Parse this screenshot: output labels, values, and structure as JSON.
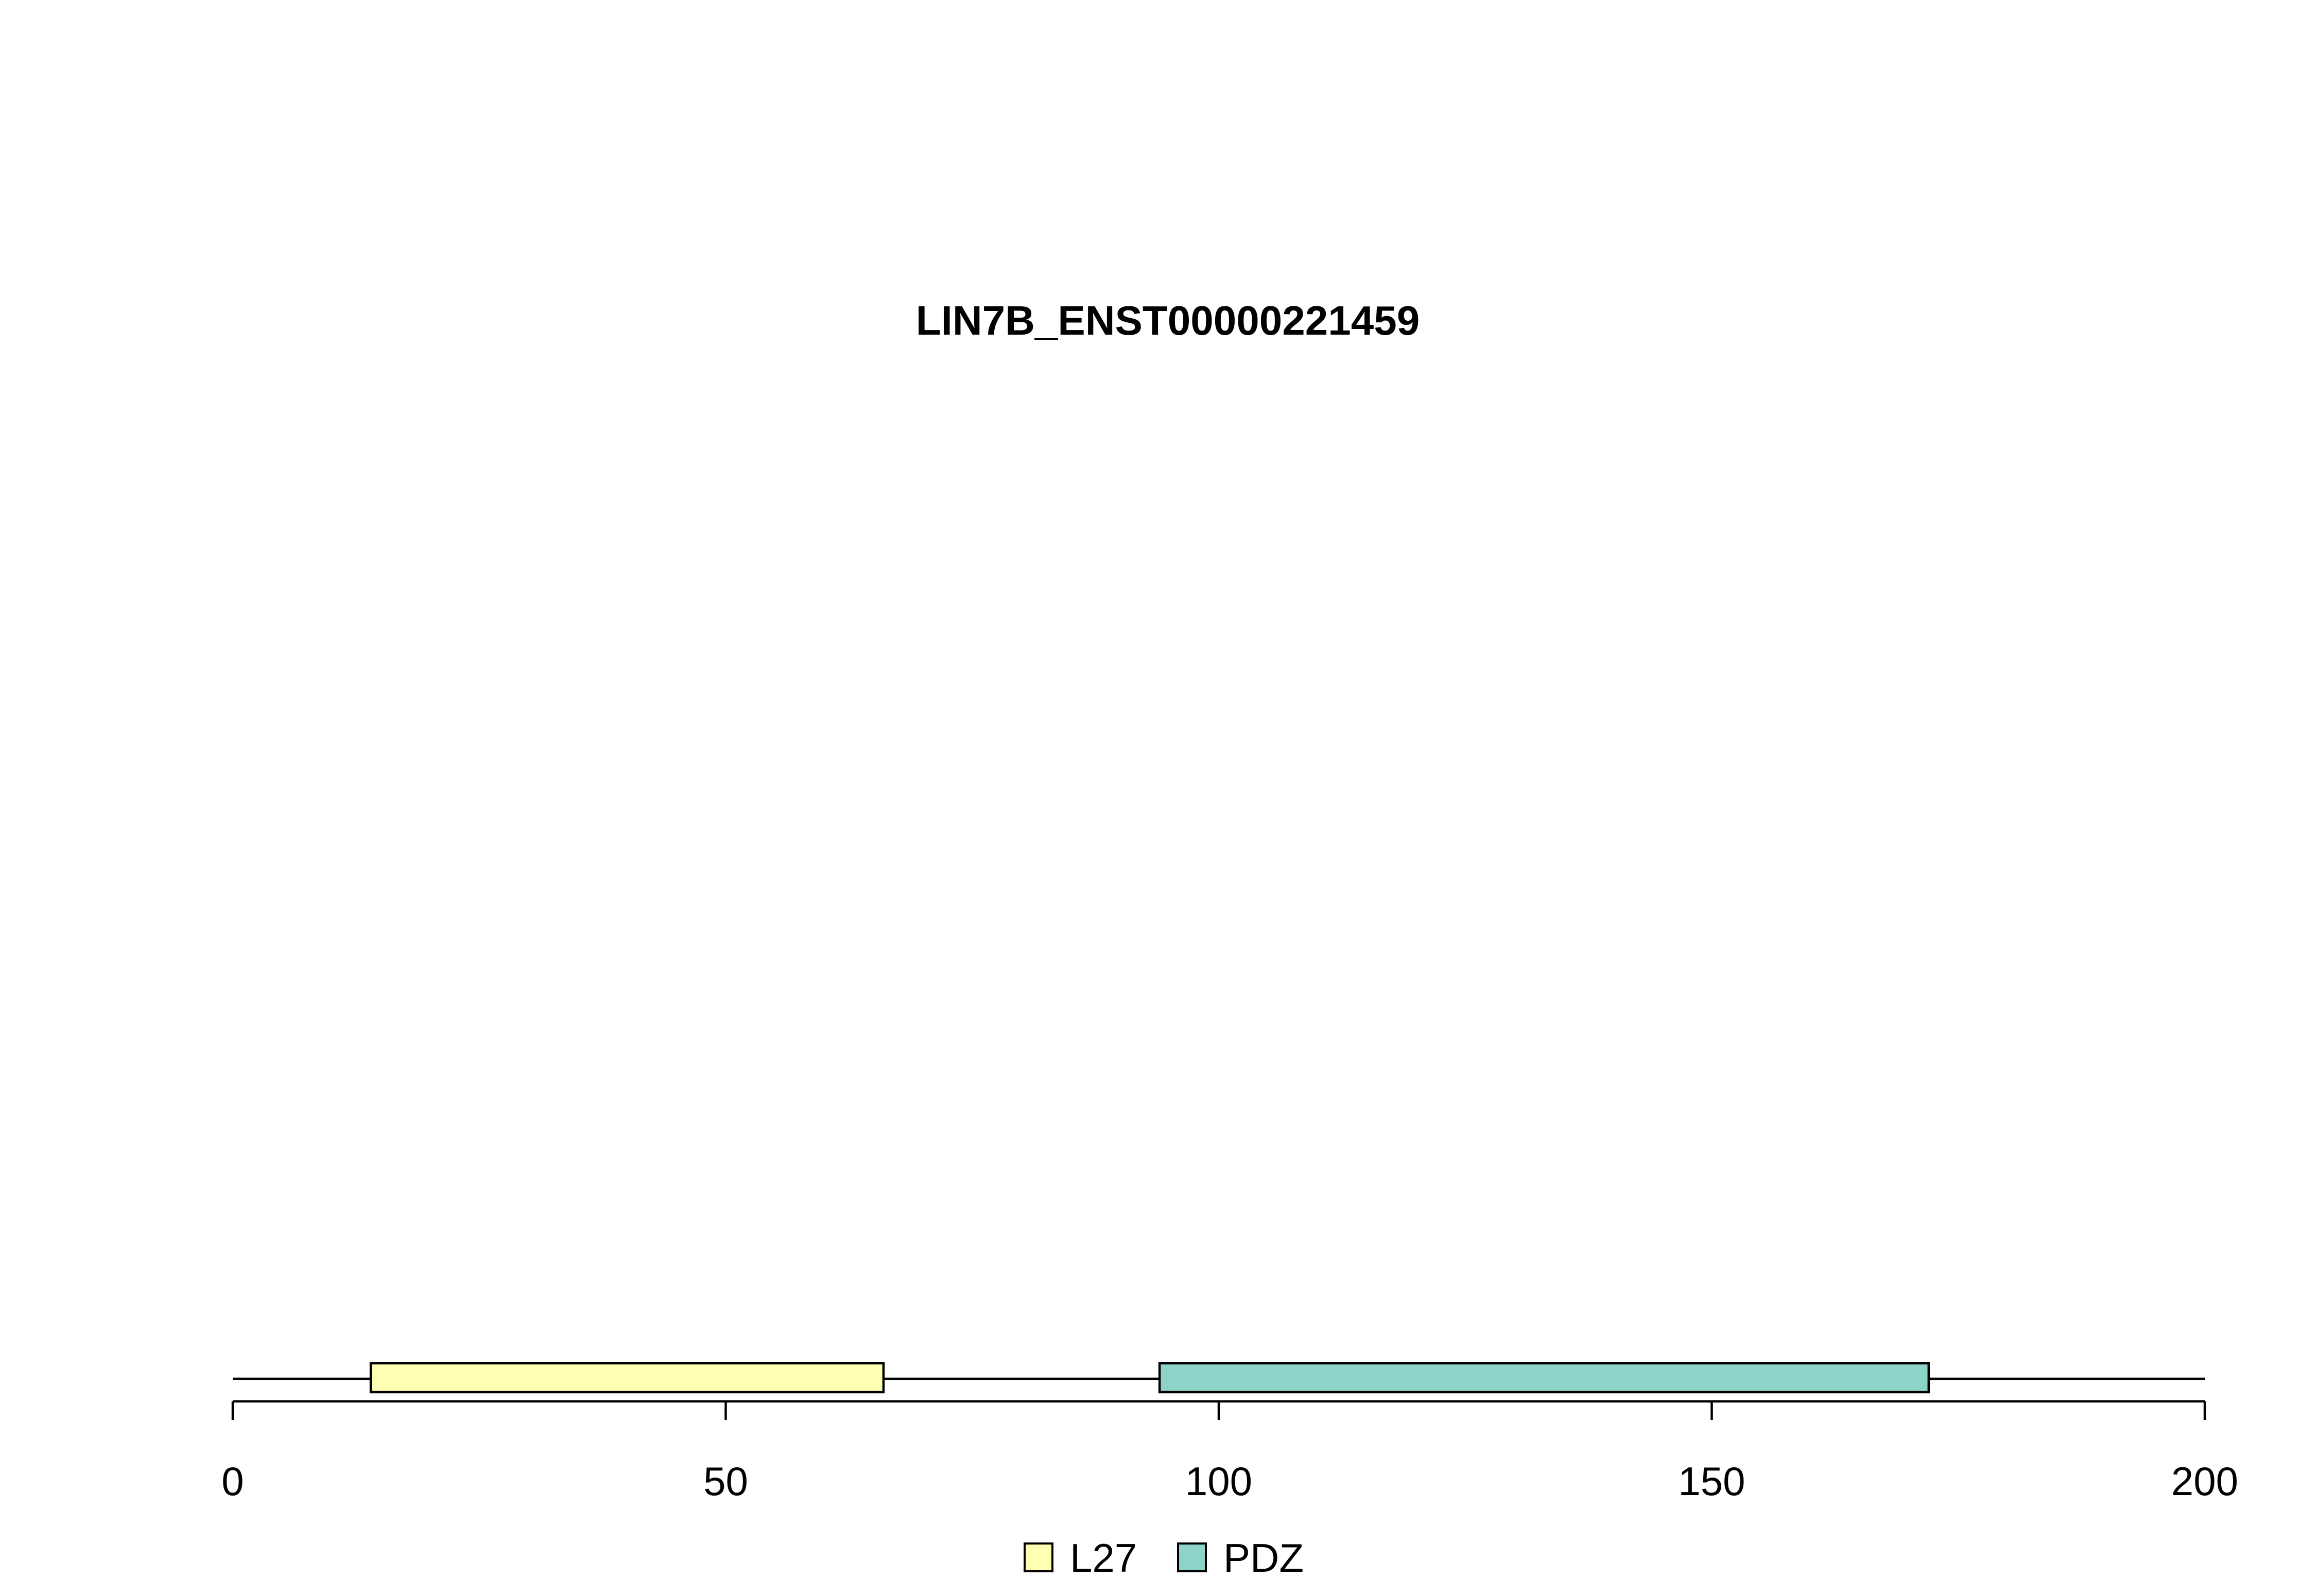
{
  "chart_data": {
    "type": "protein-domain-track",
    "title": "LIN7B_ENST00000221459",
    "protein_length": 200,
    "xlim": [
      0,
      200
    ],
    "x_ticks": [
      0,
      50,
      100,
      150,
      200
    ],
    "x_tick_labels": [
      "0",
      "50",
      "100",
      "150",
      "200"
    ],
    "domains": [
      {
        "name": "L27",
        "start": 14,
        "end": 66,
        "color": "#FFFFB3"
      },
      {
        "name": "PDZ",
        "start": 94,
        "end": 172,
        "color": "#8DD3C7"
      }
    ],
    "legend": {
      "placement": "bottom-center",
      "entries": [
        {
          "label": "L27",
          "color": "#FFFFB3"
        },
        {
          "label": "PDZ",
          "color": "#8DD3C7"
        }
      ]
    },
    "grid": false
  }
}
